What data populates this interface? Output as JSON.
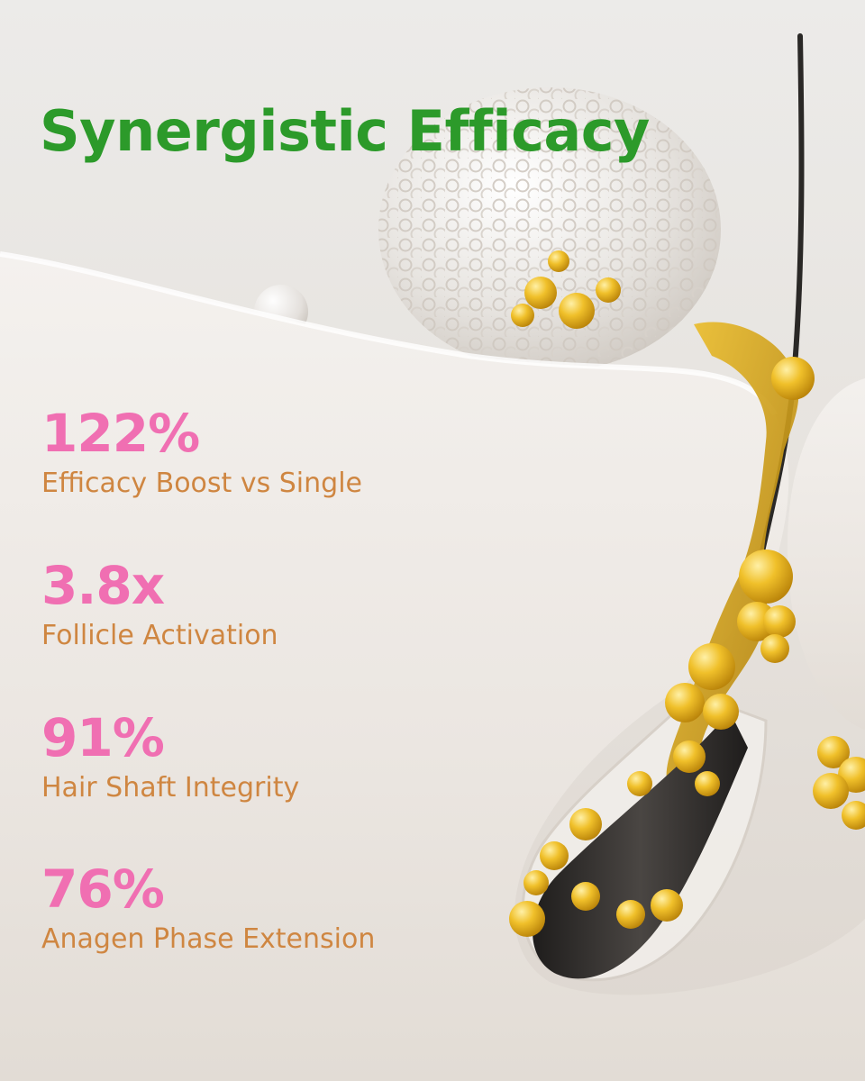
{
  "headline": {
    "text": "Synergistic Efficacy",
    "color": "#2c9a2a"
  },
  "stat_colors": {
    "value": "#f06fb2",
    "label": "#cf8641"
  },
  "stats": [
    {
      "value": "122%",
      "label": "Efficacy Boost vs Single"
    },
    {
      "value": "3.8x",
      "label": "Follicle Activation"
    },
    {
      "value": "91%",
      "label": "Hair Shaft Integrity"
    },
    {
      "value": "76%",
      "label": "Anagen Phase Extension"
    }
  ],
  "illustration": {
    "subject": "hair-follicle-with-serum-droplets",
    "colors": {
      "background": "#e9e6e2",
      "skin": "#efece8",
      "serum": "#e7b417",
      "hair": "#2d2b29"
    }
  }
}
